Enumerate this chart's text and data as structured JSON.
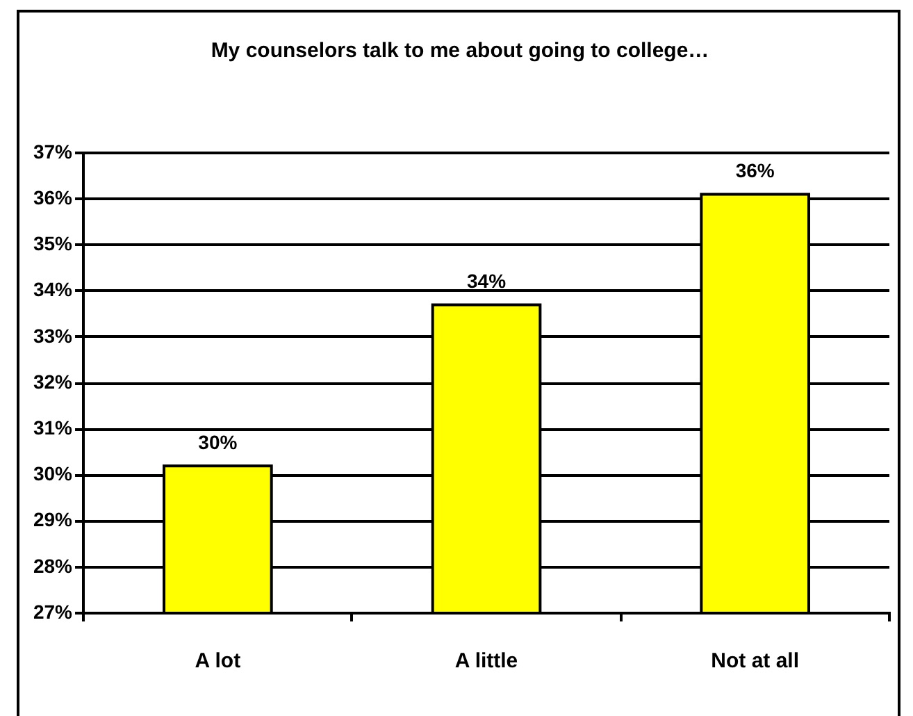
{
  "chart_data": {
    "type": "bar",
    "title": "My counselors talk to me about going to college…",
    "categories": [
      "A lot",
      "A little",
      "Not at all"
    ],
    "values": [
      30.2,
      33.7,
      36.1
    ],
    "color": "#ffff00",
    "value_labels": [
      "30%",
      "34%",
      "36%"
    ],
    "ylim": [
      27,
      37
    ],
    "yticks": [
      {
        "value": 27,
        "label": "27%"
      },
      {
        "value": 28,
        "label": "28%"
      },
      {
        "value": 29,
        "label": "29%"
      },
      {
        "value": 30,
        "label": "30%"
      },
      {
        "value": 31,
        "label": "31%"
      },
      {
        "value": 32,
        "label": "32%"
      },
      {
        "value": 33,
        "label": "33%"
      },
      {
        "value": 34,
        "label": "34%"
      },
      {
        "value": 35,
        "label": "35%"
      },
      {
        "value": 36,
        "label": "36%"
      },
      {
        "value": 37,
        "label": "37%"
      }
    ],
    "grid": "y"
  }
}
